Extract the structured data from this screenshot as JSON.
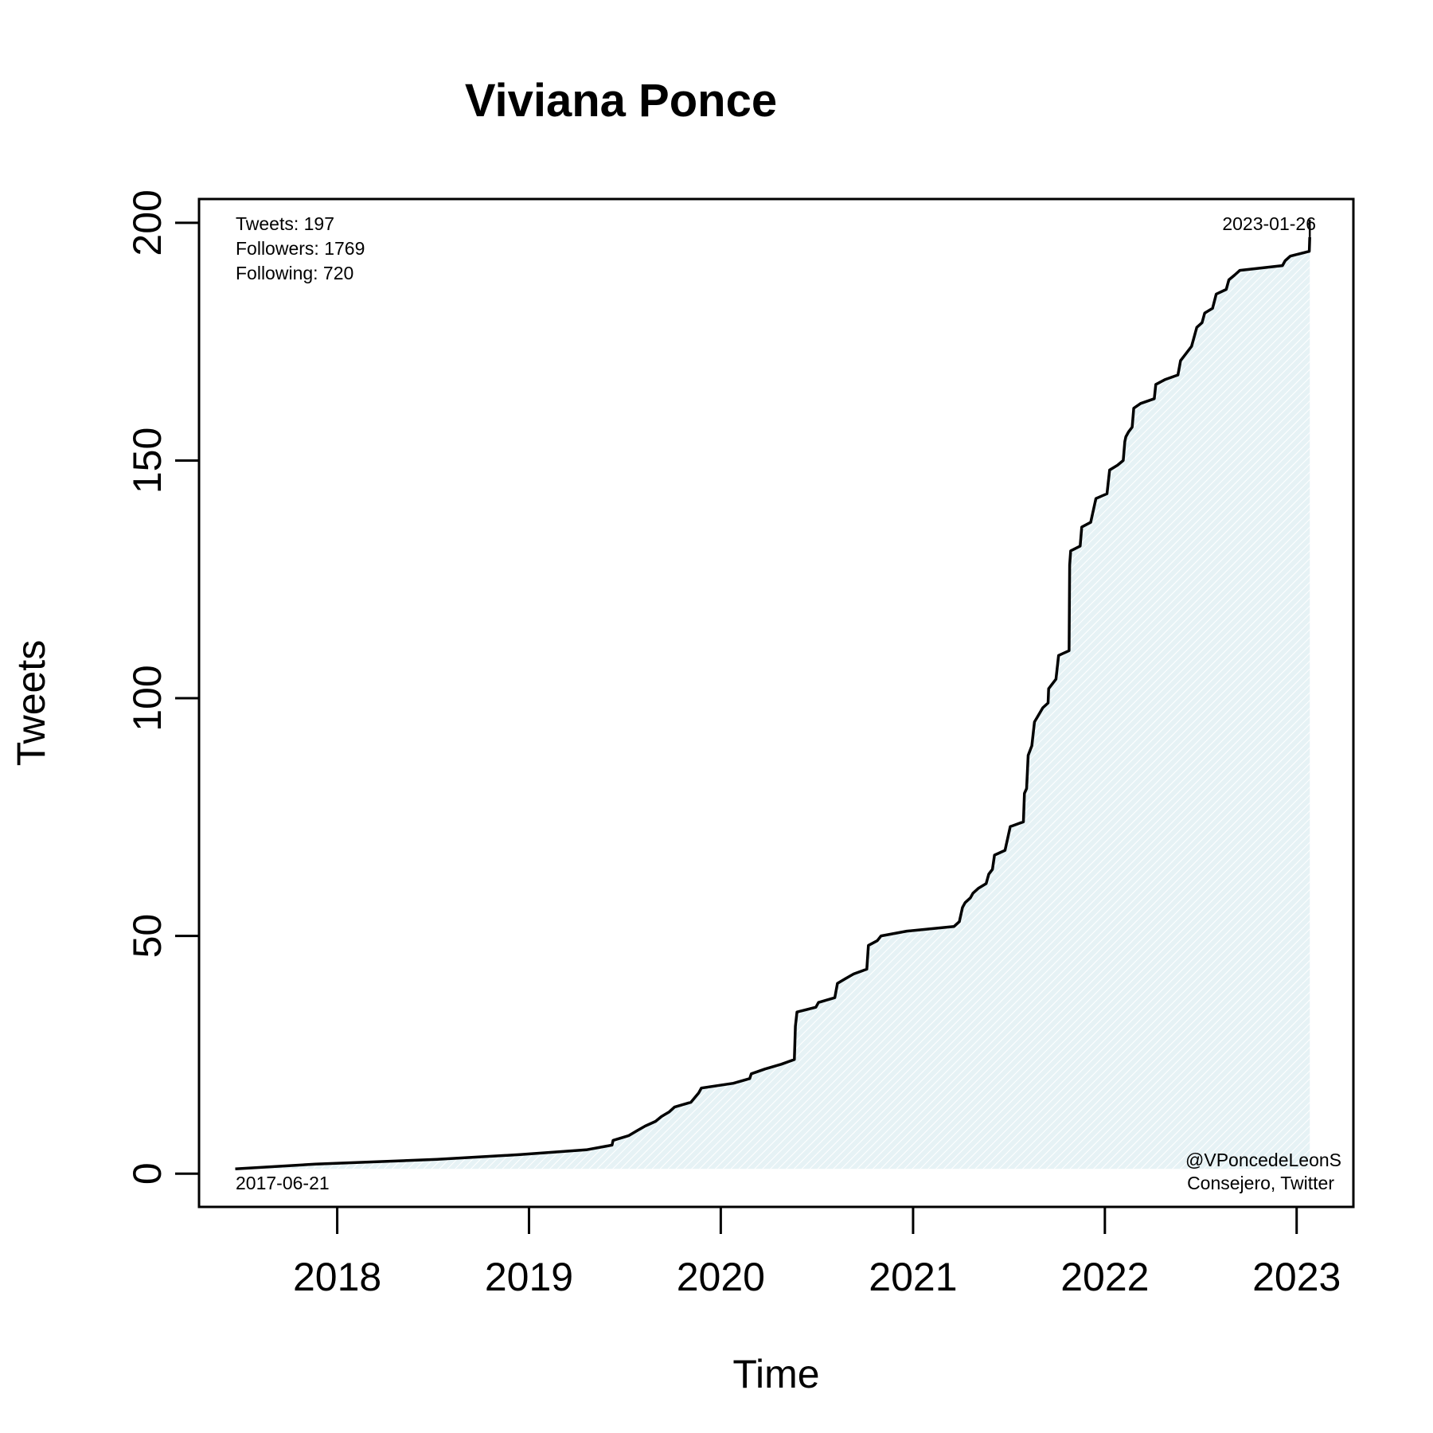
{
  "chart_data": {
    "type": "area",
    "title": "Viviana Ponce",
    "xlabel": "Time",
    "ylabel": "Tweets",
    "x_ticks": [
      "2018",
      "2019",
      "2020",
      "2021",
      "2022",
      "2023"
    ],
    "y_ticks": [
      0,
      50,
      100,
      150,
      200
    ],
    "xlim": [
      "2017-04-13",
      "2023-04-19"
    ],
    "ylim": [
      -7,
      205
    ],
    "grid": false,
    "fill_color": "#e6f2f5",
    "line_color": "#000000",
    "annotations": {
      "stats": [
        "Tweets: 197",
        "Followers: 1769",
        "Following: 720"
      ],
      "start_date": "2017-06-21",
      "end_date": "2023-01-26",
      "handle": "@VPoncedeLeonS",
      "source": "Consejero, Twitter"
    },
    "series": [
      {
        "points": [
          [
            "2017-06-21",
            1
          ],
          [
            "2017-11-20",
            2
          ],
          [
            "2018-07-10",
            3
          ],
          [
            "2018-12-15",
            4
          ],
          [
            "2019-04-20",
            5
          ],
          [
            "2019-06-08",
            6
          ],
          [
            "2019-06-10",
            7
          ],
          [
            "2019-07-10",
            8
          ],
          [
            "2019-07-25",
            9
          ],
          [
            "2019-08-10",
            10
          ],
          [
            "2019-08-30",
            11
          ],
          [
            "2019-09-10",
            12
          ],
          [
            "2019-09-25",
            13
          ],
          [
            "2019-10-05",
            14
          ],
          [
            "2019-11-05",
            15
          ],
          [
            "2019-11-20",
            17
          ],
          [
            "2019-11-25",
            18
          ],
          [
            "2020-01-25",
            19
          ],
          [
            "2020-02-25",
            20
          ],
          [
            "2020-02-28",
            21
          ],
          [
            "2020-03-25",
            22
          ],
          [
            "2020-04-25",
            23
          ],
          [
            "2020-05-20",
            24
          ],
          [
            "2020-05-22",
            31
          ],
          [
            "2020-05-25",
            34
          ],
          [
            "2020-06-30",
            35
          ],
          [
            "2020-07-05",
            36
          ],
          [
            "2020-08-05",
            37
          ],
          [
            "2020-08-10",
            40
          ],
          [
            "2020-08-25",
            41
          ],
          [
            "2020-09-10",
            42
          ],
          [
            "2020-10-05",
            43
          ],
          [
            "2020-10-08",
            48
          ],
          [
            "2020-10-25",
            49
          ],
          [
            "2020-11-01",
            50
          ],
          [
            "2020-12-20",
            51
          ],
          [
            "2021-03-20",
            52
          ],
          [
            "2021-03-30",
            53
          ],
          [
            "2021-04-05",
            56
          ],
          [
            "2021-04-10",
            57
          ],
          [
            "2021-04-20",
            58
          ],
          [
            "2021-04-25",
            59
          ],
          [
            "2021-05-05",
            60
          ],
          [
            "2021-05-20",
            61
          ],
          [
            "2021-05-25",
            63
          ],
          [
            "2021-06-01",
            64
          ],
          [
            "2021-06-05",
            67
          ],
          [
            "2021-06-25",
            68
          ],
          [
            "2021-07-05",
            73
          ],
          [
            "2021-07-30",
            74
          ],
          [
            "2021-08-01",
            80
          ],
          [
            "2021-08-05",
            81
          ],
          [
            "2021-08-08",
            88
          ],
          [
            "2021-08-15",
            90
          ],
          [
            "2021-08-20",
            95
          ],
          [
            "2021-09-05",
            98
          ],
          [
            "2021-09-15",
            99
          ],
          [
            "2021-09-16",
            102
          ],
          [
            "2021-09-30",
            104
          ],
          [
            "2021-10-05",
            109
          ],
          [
            "2021-10-25",
            110
          ],
          [
            "2021-10-26",
            128
          ],
          [
            "2021-10-28",
            131
          ],
          [
            "2021-11-15",
            132
          ],
          [
            "2021-11-18",
            136
          ],
          [
            "2021-12-05",
            137
          ],
          [
            "2021-12-15",
            142
          ],
          [
            "2022-01-05",
            143
          ],
          [
            "2022-01-10",
            148
          ],
          [
            "2022-01-25",
            149
          ],
          [
            "2022-02-05",
            150
          ],
          [
            "2022-02-08",
            154
          ],
          [
            "2022-02-10",
            155
          ],
          [
            "2022-02-15",
            156
          ],
          [
            "2022-02-22",
            157
          ],
          [
            "2022-02-25",
            161
          ],
          [
            "2022-03-10",
            162
          ],
          [
            "2022-04-05",
            163
          ],
          [
            "2022-04-08",
            166
          ],
          [
            "2022-04-25",
            167
          ],
          [
            "2022-05-20",
            168
          ],
          [
            "2022-05-25",
            171
          ],
          [
            "2022-06-01",
            172
          ],
          [
            "2022-06-15",
            174
          ],
          [
            "2022-06-20",
            176
          ],
          [
            "2022-06-25",
            178
          ],
          [
            "2022-07-05",
            179
          ],
          [
            "2022-07-10",
            181
          ],
          [
            "2022-07-25",
            182
          ],
          [
            "2022-08-01",
            185
          ],
          [
            "2022-08-20",
            186
          ],
          [
            "2022-08-25",
            188
          ],
          [
            "2022-09-05",
            189
          ],
          [
            "2022-09-15",
            190
          ],
          [
            "2022-12-05",
            191
          ],
          [
            "2022-12-10",
            192
          ],
          [
            "2022-12-20",
            193
          ],
          [
            "2023-01-25",
            194
          ],
          [
            "2023-01-26",
            197
          ]
        ]
      }
    ]
  }
}
